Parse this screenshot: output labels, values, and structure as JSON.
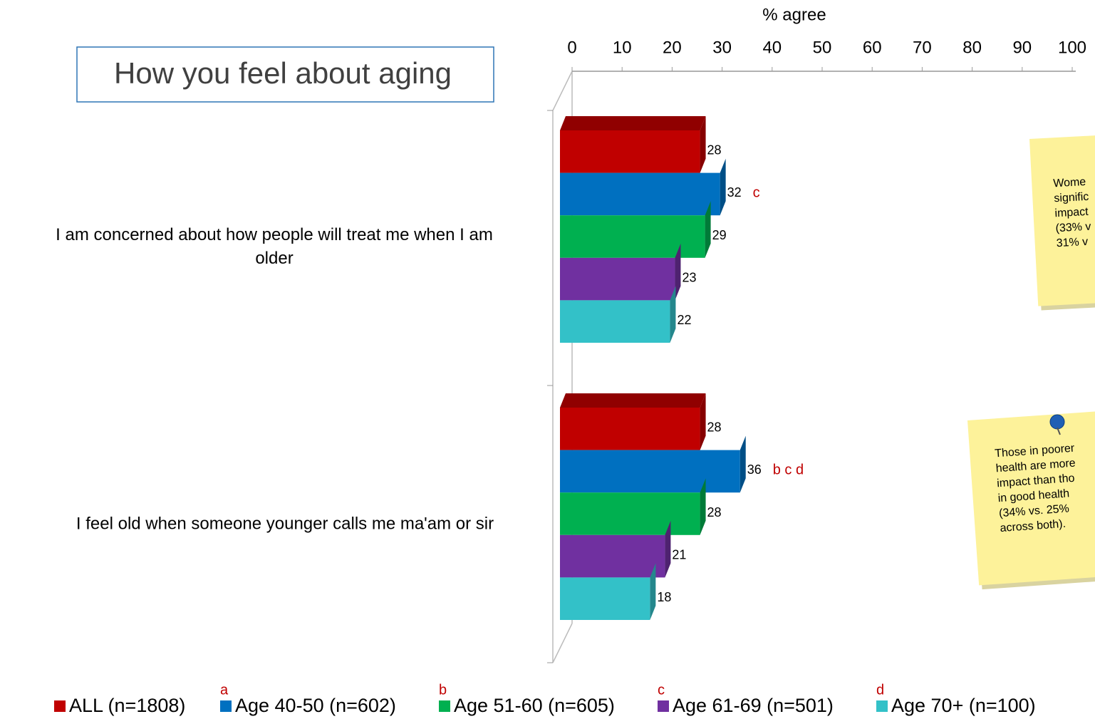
{
  "title": "How you feel about aging",
  "chart_data": {
    "type": "bar",
    "orientation": "horizontal",
    "x_label": "% agree",
    "categories": [
      "I am concerned about how people will treat me when I am older",
      "I feel old when someone younger calls me ma'am or sir"
    ],
    "series": [
      {
        "name": "ALL (n=1808)",
        "color": "#c00000",
        "values": [
          28,
          28
        ]
      },
      {
        "name": "Age 40-50 (n=602)",
        "letter": "a",
        "color": "#0070c0",
        "values": [
          32,
          36
        ],
        "significance": [
          "c",
          "b c d"
        ]
      },
      {
        "name": "Age 51-60 (n=605)",
        "letter": "b",
        "color": "#00b050",
        "values": [
          29,
          28
        ]
      },
      {
        "name": "Age 61-69 (n=501)",
        "letter": "c",
        "color": "#7030a0",
        "values": [
          23,
          21
        ]
      },
      {
        "name": "Age 70+ (n=100)",
        "letter": "d",
        "color": "#33c1c8",
        "values": [
          22,
          18
        ]
      }
    ],
    "xlim": [
      0,
      100
    ],
    "xticks": [
      0,
      10,
      20,
      30,
      40,
      50,
      60,
      70,
      80,
      90,
      100
    ]
  },
  "notes": [
    {
      "lines": [
        "Wome",
        "signific",
        "impact",
        "(33% v",
        "31% v"
      ]
    },
    {
      "lines": [
        "Those in poorer",
        "health are more",
        "impact than tho",
        "in good health",
        "(34% vs. 25%",
        "across both)."
      ]
    }
  ]
}
